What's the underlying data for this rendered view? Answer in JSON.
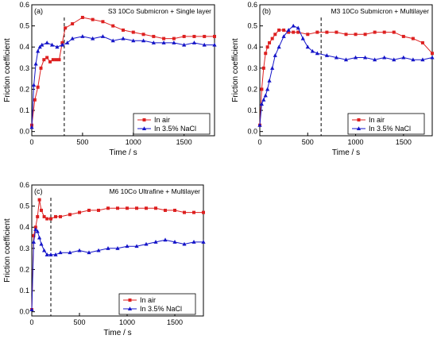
{
  "colors": {
    "air": "#dd2020",
    "nacl": "#1414c8",
    "axis": "#000000"
  },
  "legend_labels": {
    "air": "In air",
    "nacl": "In 3.5% NaCl"
  },
  "chart_data": [
    {
      "type": "line",
      "panel_label": "(a)",
      "title": "S3 10Co Submicron + Single layer",
      "xlabel": "Time / s",
      "ylabel": "Friction coefficient",
      "xlim": [
        0,
        1800
      ],
      "ylim": [
        -0.02,
        0.6
      ],
      "xticks": [
        "0",
        "500",
        "1000",
        "1500"
      ],
      "yticks": [
        "0.0",
        "0.1",
        "0.2",
        "0.3",
        "0.4",
        "0.5",
        "0.6"
      ],
      "vline_x": 320,
      "legend": "bottom-right",
      "series": [
        {
          "name": "In air",
          "marker": "square",
          "x": [
            0,
            30,
            60,
            90,
            120,
            150,
            180,
            210,
            240,
            270,
            300,
            330,
            400,
            500,
            600,
            700,
            800,
            900,
            1000,
            1100,
            1200,
            1300,
            1400,
            1500,
            1600,
            1700,
            1800
          ],
          "y": [
            0.03,
            0.15,
            0.21,
            0.3,
            0.34,
            0.35,
            0.33,
            0.34,
            0.34,
            0.34,
            0.42,
            0.49,
            0.51,
            0.54,
            0.53,
            0.52,
            0.5,
            0.48,
            0.47,
            0.46,
            0.45,
            0.44,
            0.44,
            0.45,
            0.45,
            0.45,
            0.45
          ]
        },
        {
          "name": "In 3.5% NaCl",
          "marker": "triangle",
          "x": [
            0,
            20,
            40,
            60,
            80,
            100,
            150,
            200,
            250,
            300,
            350,
            400,
            500,
            600,
            700,
            800,
            900,
            1000,
            1100,
            1200,
            1300,
            1400,
            1500,
            1600,
            1700,
            1800
          ],
          "y": [
            0.02,
            0.22,
            0.32,
            0.38,
            0.4,
            0.41,
            0.42,
            0.41,
            0.4,
            0.41,
            0.42,
            0.44,
            0.45,
            0.44,
            0.45,
            0.43,
            0.44,
            0.43,
            0.43,
            0.42,
            0.42,
            0.42,
            0.41,
            0.42,
            0.41,
            0.41
          ]
        }
      ]
    },
    {
      "type": "line",
      "panel_label": "(b)",
      "title": "M3 10Co Submicron + Multilayer",
      "xlabel": "Time / s",
      "ylabel": "Friction coefficient",
      "xlim": [
        0,
        1800
      ],
      "ylim": [
        -0.02,
        0.6
      ],
      "xticks": [
        "0",
        "500",
        "1000",
        "1500"
      ],
      "yticks": [
        "0.0",
        "0.1",
        "0.2",
        "0.3",
        "0.4",
        "0.5",
        "0.6"
      ],
      "vline_x": 640,
      "legend": "bottom-right",
      "series": [
        {
          "name": "In air",
          "marker": "square",
          "x": [
            0,
            20,
            40,
            60,
            80,
            100,
            130,
            160,
            200,
            250,
            300,
            350,
            400,
            500,
            600,
            700,
            800,
            900,
            1000,
            1100,
            1200,
            1300,
            1400,
            1500,
            1600,
            1700,
            1800
          ],
          "y": [
            0.03,
            0.2,
            0.3,
            0.37,
            0.4,
            0.42,
            0.44,
            0.46,
            0.48,
            0.48,
            0.47,
            0.47,
            0.47,
            0.46,
            0.47,
            0.47,
            0.47,
            0.46,
            0.46,
            0.46,
            0.47,
            0.47,
            0.47,
            0.45,
            0.44,
            0.42,
            0.37
          ]
        },
        {
          "name": "In 3.5% NaCl",
          "marker": "triangle",
          "x": [
            0,
            20,
            40,
            60,
            80,
            100,
            130,
            160,
            200,
            250,
            300,
            350,
            400,
            450,
            500,
            550,
            600,
            700,
            800,
            900,
            1000,
            1100,
            1200,
            1300,
            1400,
            1500,
            1600,
            1700,
            1800
          ],
          "y": [
            0.03,
            0.13,
            0.15,
            0.17,
            0.2,
            0.24,
            0.3,
            0.36,
            0.4,
            0.45,
            0.48,
            0.5,
            0.49,
            0.44,
            0.4,
            0.38,
            0.37,
            0.36,
            0.35,
            0.34,
            0.35,
            0.35,
            0.34,
            0.35,
            0.34,
            0.35,
            0.34,
            0.34,
            0.35
          ]
        }
      ]
    },
    {
      "type": "line",
      "panel_label": "(c)",
      "title": "M6 10Co Ultrafine + Multilayer",
      "xlabel": "Time / s",
      "ylabel": "Friction coefficient",
      "xlim": [
        0,
        1800
      ],
      "ylim": [
        -0.02,
        0.6
      ],
      "xticks": [
        "0",
        "500",
        "1000",
        "1500"
      ],
      "yticks": [
        "0.0",
        "0.1",
        "0.2",
        "0.3",
        "0.4",
        "0.5",
        "0.6"
      ],
      "vline_x": 200,
      "legend": "bottom-right",
      "series": [
        {
          "name": "In air",
          "marker": "square",
          "x": [
            0,
            20,
            40,
            60,
            80,
            100,
            130,
            160,
            200,
            250,
            300,
            400,
            500,
            600,
            700,
            800,
            900,
            1000,
            1100,
            1200,
            1300,
            1400,
            1500,
            1600,
            1700,
            1800
          ],
          "y": [
            0.01,
            0.36,
            0.4,
            0.45,
            0.53,
            0.48,
            0.45,
            0.44,
            0.44,
            0.45,
            0.45,
            0.46,
            0.47,
            0.48,
            0.48,
            0.49,
            0.49,
            0.49,
            0.49,
            0.49,
            0.49,
            0.48,
            0.48,
            0.47,
            0.47,
            0.47
          ]
        },
        {
          "name": "In 3.5% NaCl",
          "marker": "triangle",
          "x": [
            0,
            20,
            40,
            60,
            80,
            100,
            130,
            160,
            200,
            250,
            300,
            400,
            500,
            600,
            700,
            800,
            900,
            1000,
            1100,
            1200,
            1300,
            1400,
            1500,
            1600,
            1700,
            1800
          ],
          "y": [
            0.01,
            0.33,
            0.39,
            0.38,
            0.35,
            0.32,
            0.29,
            0.27,
            0.27,
            0.27,
            0.28,
            0.28,
            0.29,
            0.28,
            0.29,
            0.3,
            0.3,
            0.31,
            0.31,
            0.32,
            0.33,
            0.34,
            0.33,
            0.32,
            0.33,
            0.33
          ]
        }
      ]
    }
  ]
}
